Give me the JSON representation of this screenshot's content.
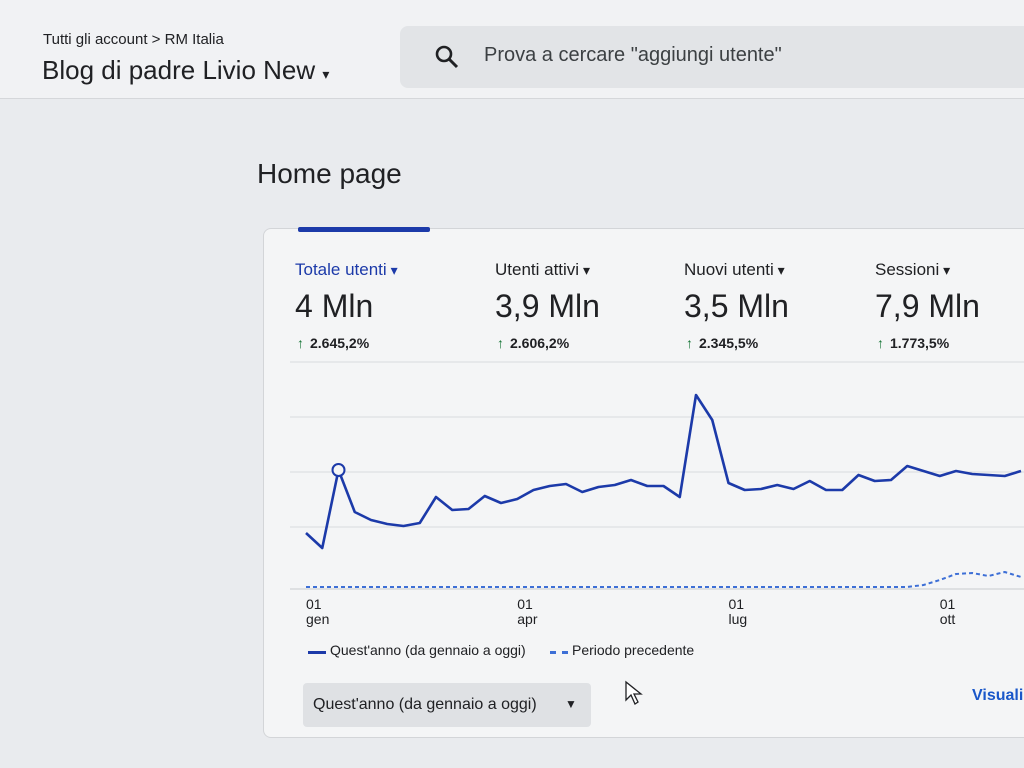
{
  "header": {
    "breadcrumb": [
      "Tutti gli account",
      "RM Italia"
    ],
    "property": "Blog di padre Livio New",
    "search_placeholder": "Prova a cercare \"aggiungi utente\""
  },
  "page_title": "Home page",
  "metrics": [
    {
      "label": "Totale utenti",
      "value": "4 Mln",
      "change": "2.645,2%"
    },
    {
      "label": "Utenti attivi",
      "value": "3,9 Mln",
      "change": "2.606,2%"
    },
    {
      "label": "Nuovi utenti",
      "value": "3,5 Mln",
      "change": "2.345,5%"
    },
    {
      "label": "Sessioni",
      "value": "7,9 Mln",
      "change": "1.773,5%"
    }
  ],
  "chart_data": {
    "type": "line",
    "categories": [
      "01 gen",
      null,
      null,
      null,
      null,
      null,
      null,
      null,
      null,
      null,
      null,
      null,
      null,
      "01 apr",
      null,
      null,
      null,
      null,
      null,
      null,
      null,
      null,
      null,
      null,
      null,
      null,
      "01 lug",
      null,
      null,
      null,
      null,
      null,
      null,
      null,
      null,
      null,
      null,
      null,
      null,
      "01 ott",
      null,
      null,
      null,
      null,
      null
    ],
    "series": [
      {
        "name": "Quest'anno (da gennaio a oggi)",
        "color": "#1c3aa9",
        "values": [
          55,
          40,
          118,
          76,
          68,
          64,
          62,
          65,
          91,
          78,
          79,
          92,
          85,
          89,
          98,
          102,
          104,
          96,
          101,
          103,
          108,
          102,
          102,
          91,
          193,
          168,
          105,
          98,
          99,
          103,
          99,
          107,
          98,
          98,
          113,
          107,
          108,
          122,
          117,
          112,
          117,
          114,
          113,
          112,
          117
        ]
      },
      {
        "name": "Periodo precedente",
        "color": "#3d6fd6",
        "dashed": true,
        "values": [
          1,
          1,
          1,
          1,
          1,
          1,
          1,
          1,
          1,
          1,
          1,
          1,
          1,
          1,
          1,
          1,
          1,
          1,
          1,
          1,
          1,
          1,
          1,
          1,
          1,
          1,
          1,
          1,
          1,
          1,
          1,
          1,
          1,
          1,
          1,
          1,
          1,
          1,
          3,
          8,
          14,
          15,
          12,
          16,
          11
        ]
      }
    ],
    "ylim": [
      0,
      230
    ],
    "grid": true
  },
  "date_range": "Quest'anno (da gennaio a oggi)",
  "link": "Visuali"
}
